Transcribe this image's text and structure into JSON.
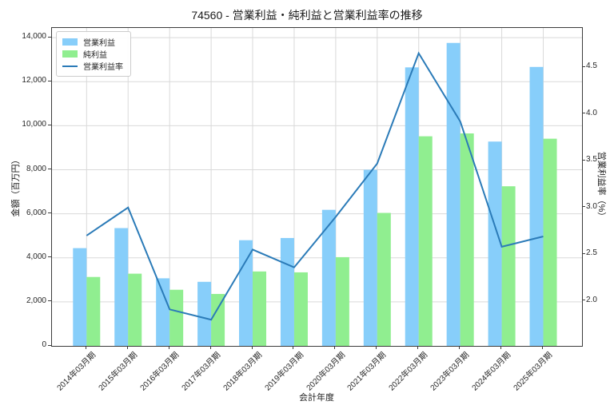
{
  "title": "74560 - 営業利益・純利益と営業利益率の推移",
  "chart_data": {
    "type": "bar",
    "subtype": "grouped-bars-with-line-dual-axis",
    "categories": [
      "2014年03月期",
      "2015年03月期",
      "2016年03月期",
      "2017年03月期",
      "2018年03月期",
      "2019年03月期",
      "2020年03月期",
      "2021年03月期",
      "2022年03月期",
      "2023年03月期",
      "2024年03月期",
      "2025年03月期"
    ],
    "series": [
      {
        "name": "営業利益",
        "type": "bar",
        "axis": "left",
        "color": "#87CEFA",
        "values": [
          4440,
          5350,
          3070,
          2910,
          4800,
          4900,
          6180,
          8000,
          12650,
          13760,
          9280,
          12670
        ]
      },
      {
        "name": "純利益",
        "type": "bar",
        "axis": "left",
        "color": "#90EE90",
        "values": [
          3130,
          3280,
          2550,
          2360,
          3380,
          3340,
          4030,
          6040,
          9520,
          9650,
          7250,
          9410
        ]
      },
      {
        "name": "営業利益率",
        "type": "line",
        "axis": "right",
        "color": "#2b7bb8",
        "values": [
          2.7,
          3.0,
          1.91,
          1.8,
          2.55,
          2.36,
          2.9,
          3.47,
          4.65,
          3.92,
          2.58,
          2.69
        ]
      }
    ],
    "xlabel": "会計年度",
    "ylabel_left": "金額（百万円）",
    "ylabel_right": "営業利益率（%）",
    "left_axis": {
      "ticks": [
        "0",
        "2,000",
        "4,000",
        "6,000",
        "8,000",
        "10,000",
        "12,000",
        "14,000"
      ],
      "tick_values": [
        0,
        2000,
        4000,
        6000,
        8000,
        10000,
        12000,
        14000
      ],
      "min": 0,
      "max": 14440
    },
    "right_axis": {
      "ticks": [
        "2.0",
        "2.5",
        "3.0",
        "3.5",
        "4.0",
        "4.5"
      ],
      "tick_values": [
        2.0,
        2.5,
        3.0,
        3.5,
        4.0,
        4.5
      ],
      "min": 1.52,
      "max": 4.92
    },
    "grid": true,
    "legend_position": "upper left",
    "grid_color": "#d9d9d9",
    "spine_color": "#3c3c3c"
  }
}
